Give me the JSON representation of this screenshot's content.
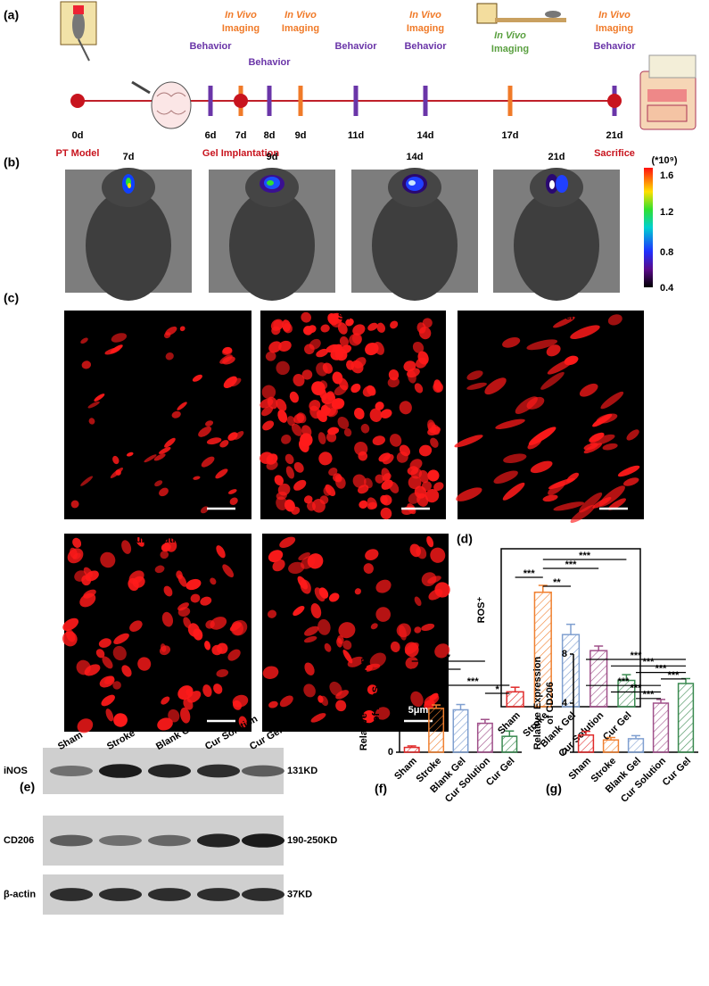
{
  "figure": {
    "panel_labels": [
      "(a)",
      "(b)",
      "(c)",
      "(d)",
      "(e)",
      "(f)",
      "(g)"
    ]
  },
  "timeline": {
    "events": [
      {
        "day": "0d",
        "labels": [],
        "below": "PT Model"
      },
      {
        "day": "6d",
        "labels": [
          "Behavior"
        ]
      },
      {
        "day": "7d",
        "labels": [
          "In Vivo",
          "Imaging"
        ],
        "below": "Gel Implantation"
      },
      {
        "day": "8d",
        "labels": [
          "Behavior"
        ]
      },
      {
        "day": "9d",
        "labels": [
          "In Vivo",
          "Imaging"
        ]
      },
      {
        "day": "11d",
        "labels": [
          "Behavior"
        ]
      },
      {
        "day": "14d",
        "labels": [
          "In Vivo",
          "Imaging",
          "Behavior"
        ]
      },
      {
        "day": "17d",
        "labels": [
          "In Vivo",
          "Imaging"
        ]
      },
      {
        "day": "21d",
        "labels": [
          "In Vivo",
          "Imaging",
          "Behavior"
        ],
        "below": "Sacrifice"
      }
    ]
  },
  "imaging": {
    "days": [
      "7d",
      "9d",
      "14d",
      "21d"
    ],
    "colorbar": {
      "unit": "(*10⁹)",
      "ticks": [
        1.6,
        1.2,
        0.8,
        0.4
      ]
    }
  },
  "staining": {
    "groups": [
      "Sham",
      "Stroke",
      "Blank Gel",
      "Cur Solution",
      "Cur Gel"
    ],
    "scale_bar": "5μm"
  },
  "western_blot": {
    "lanes": [
      "Sham",
      "Stroke",
      "Blank Gel",
      "Cur Solution",
      "Cur Gel"
    ],
    "rows": [
      {
        "protein": "iNOS",
        "size": "131KD"
      },
      {
        "protein": "CD206",
        "size": "190-250KD"
      },
      {
        "protein": "β-actin",
        "size": "37KD"
      }
    ]
  },
  "chart_data": [
    {
      "type": "bar",
      "ylabel": "ROS⁺",
      "categories": [
        "Sham",
        "Stroke",
        "Blank Gel",
        "Cur Solution",
        "Cur Gel"
      ],
      "values": [
        13,
        100,
        63,
        49,
        23
      ],
      "errors": [
        4,
        6,
        9,
        4,
        5
      ],
      "colors": [
        "#e02a2a",
        "#f08030",
        "#7f9fd0",
        "#a0508a",
        "#3a8a50"
      ],
      "ylim": [
        0,
        138
      ],
      "significance": [
        {
          "from": 1,
          "to": 4,
          "label": "***"
        },
        {
          "from": 1,
          "to": 3,
          "label": "***"
        },
        {
          "from": 0,
          "to": 1,
          "label": "***"
        },
        {
          "from": 1,
          "to": 2,
          "label": "**"
        }
      ]
    },
    {
      "type": "bar",
      "ylabel": [
        "Relative Expression",
        "of iNOS"
      ],
      "categories": [
        "Sham",
        "Stroke",
        "Blank Gel",
        "Cur Solution",
        "Cur Gel"
      ],
      "values": [
        1.0,
        9.1,
        8.8,
        6.0,
        3.3
      ],
      "errors": [
        0.3,
        0.7,
        1.1,
        0.8,
        1.1
      ],
      "colors": [
        "#e02a2a",
        "#f08030",
        "#7f9fd0",
        "#a0508a",
        "#3a8a50"
      ],
      "ylim": [
        0,
        20
      ],
      "yticks": [
        0,
        5,
        10
      ],
      "significance": [
        {
          "from": 0,
          "to": 3,
          "label": "*"
        },
        {
          "from": 0,
          "to": 2,
          "label": "***"
        },
        {
          "from": 0,
          "to": 1,
          "label": "***"
        },
        {
          "from": 1,
          "to": 4,
          "label": "***"
        },
        {
          "from": 3,
          "to": 4,
          "label": "*"
        }
      ]
    },
    {
      "type": "bar",
      "ylabel": [
        "Relative Expression",
        "of CD206"
      ],
      "categories": [
        "Sham",
        "Stroke",
        "Blank Gel",
        "Cur Solution",
        "Cur Gel"
      ],
      "values": [
        1.4,
        1.0,
        1.1,
        4.0,
        5.6
      ],
      "errors": [
        0.3,
        0.2,
        0.25,
        0.3,
        0.4
      ],
      "colors": [
        "#e02a2a",
        "#f08030",
        "#7f9fd0",
        "#a0508a",
        "#3a8a50"
      ],
      "ylim": [
        0,
        8
      ],
      "yticks": [
        0,
        4,
        8
      ],
      "significance": [
        {
          "from": 0,
          "to": 4,
          "label": "***"
        },
        {
          "from": 1,
          "to": 4,
          "label": "***"
        },
        {
          "from": 2,
          "to": 4,
          "label": "***"
        },
        {
          "from": 3,
          "to": 4,
          "label": "***"
        },
        {
          "from": 0,
          "to": 3,
          "label": "***"
        },
        {
          "from": 1,
          "to": 3,
          "label": "***"
        },
        {
          "from": 2,
          "to": 3,
          "label": "***"
        }
      ]
    }
  ]
}
